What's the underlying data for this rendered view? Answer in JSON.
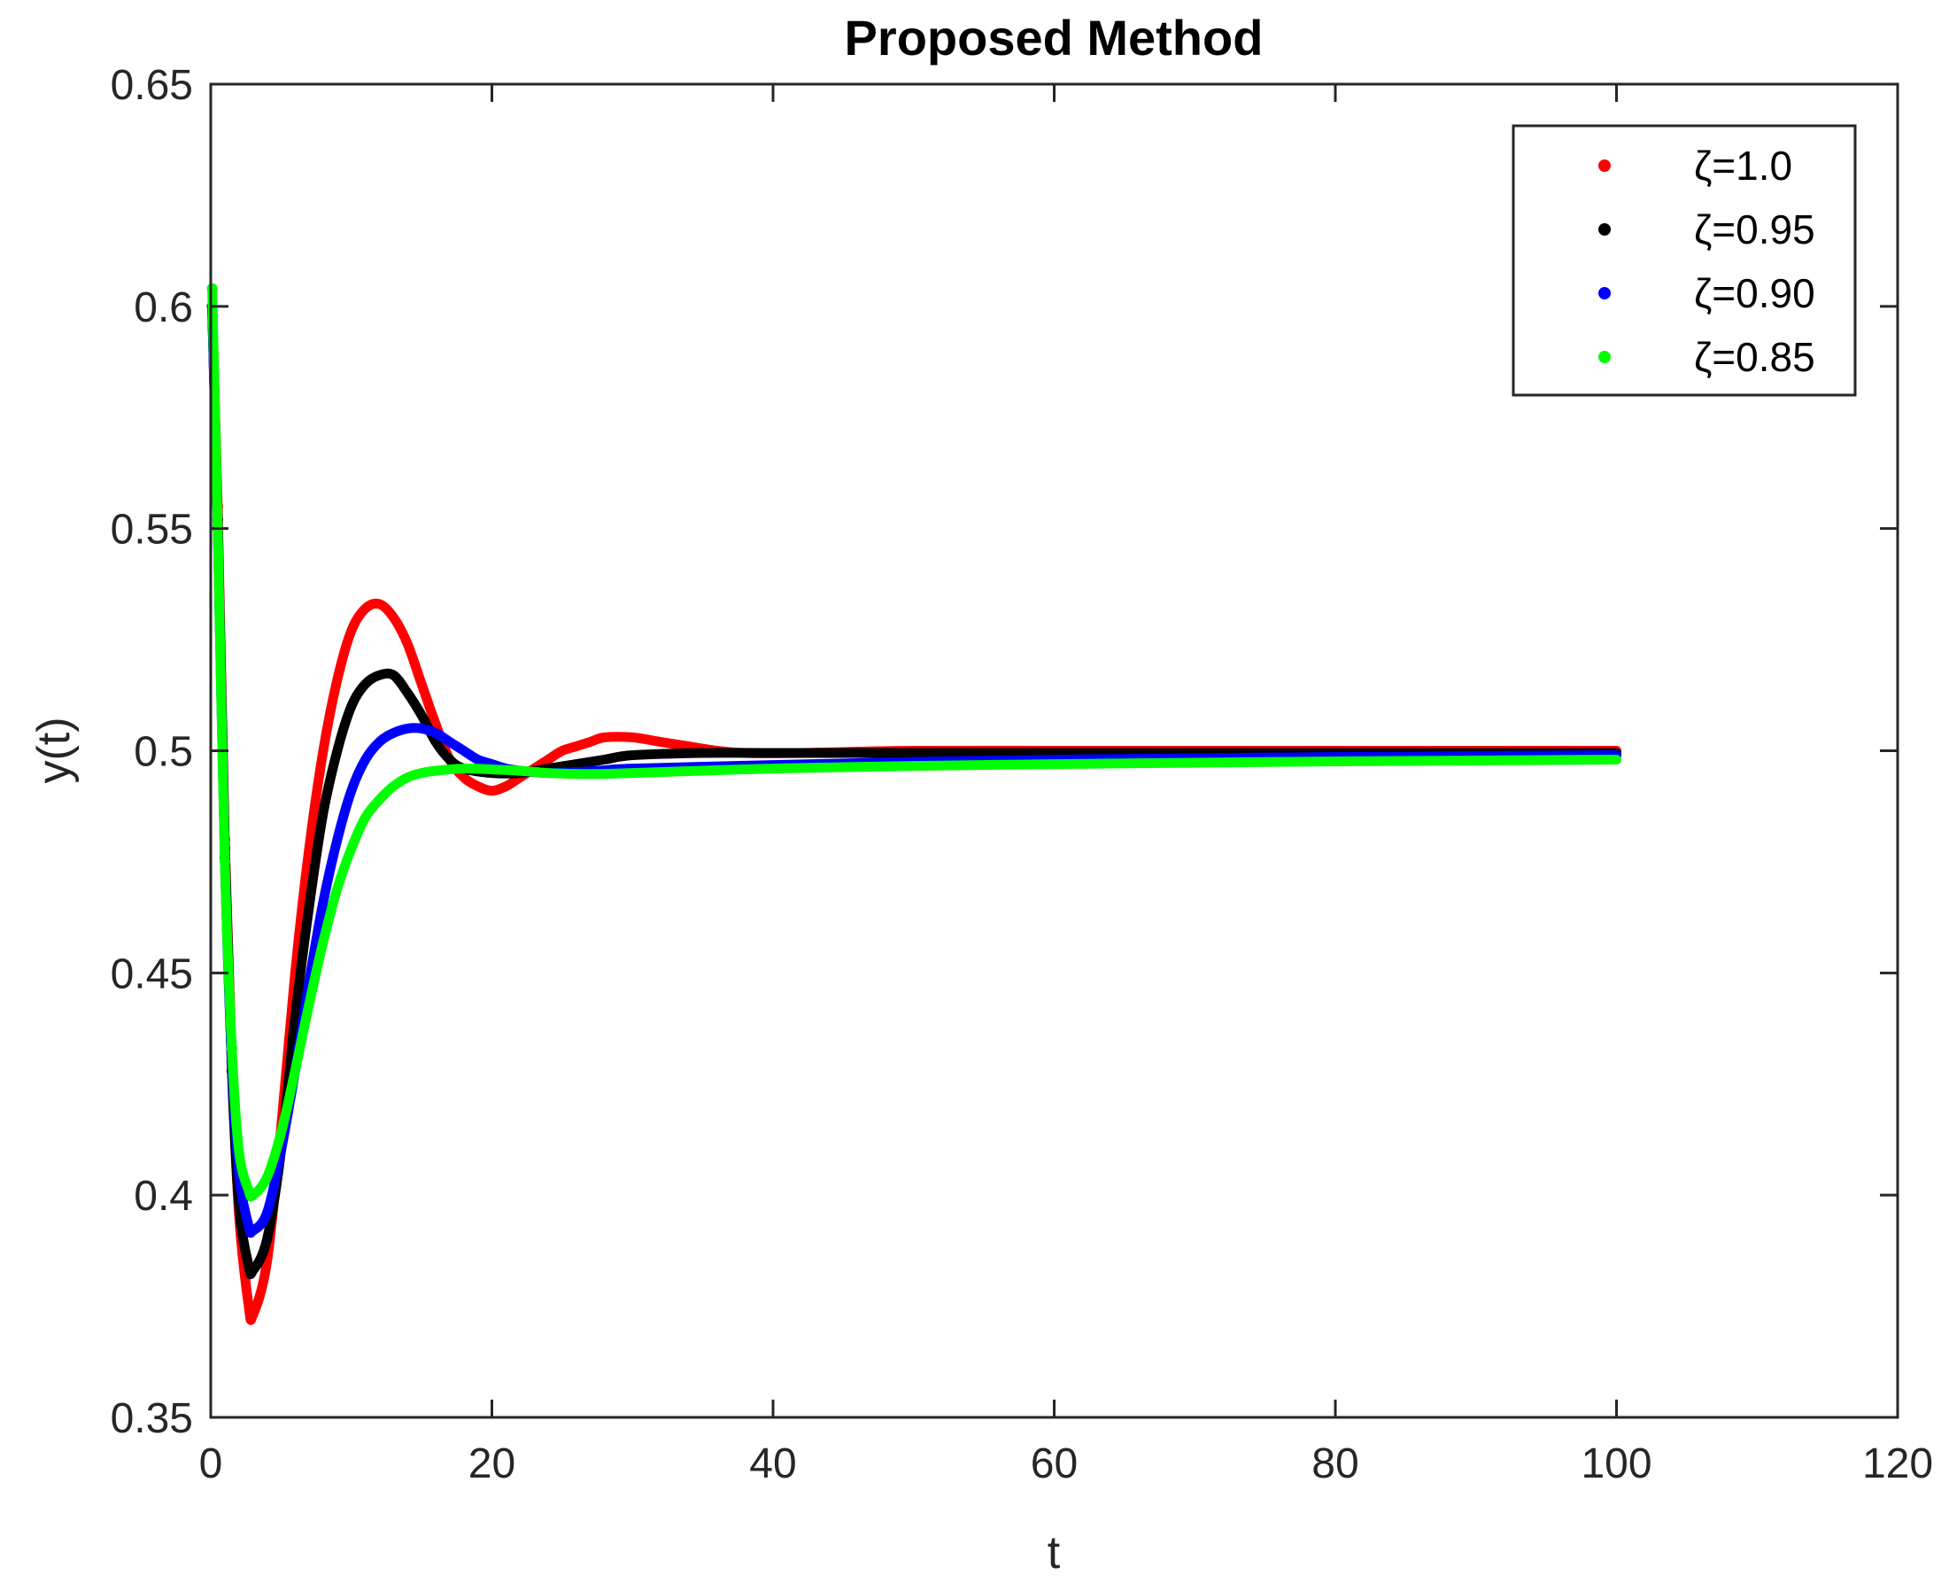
{
  "chart_data": {
    "type": "scatter",
    "title": "Proposed Method",
    "xlabel": "t",
    "ylabel": "y(t)",
    "xlim": [
      0,
      120
    ],
    "ylim": [
      0.35,
      0.65
    ],
    "xticks": [
      "0",
      "20",
      "40",
      "60",
      "80",
      "100",
      "120"
    ],
    "yticks": [
      "0.35",
      "0.4",
      "0.45",
      "0.5",
      "0.55",
      "0.6",
      "0.65"
    ],
    "grid": false,
    "legend_position": "top-right",
    "series": [
      {
        "name": "ζ=1.0",
        "color": "#ff0000",
        "points": [
          [
            0.1,
            0.6
          ],
          [
            0.5,
            0.555
          ],
          [
            1,
            0.48
          ],
          [
            1.5,
            0.43
          ],
          [
            2,
            0.396
          ],
          [
            2.7,
            0.375
          ],
          [
            3,
            0.373
          ],
          [
            4,
            0.385
          ],
          [
            5,
            0.415
          ],
          [
            6,
            0.45
          ],
          [
            7,
            0.478
          ],
          [
            8,
            0.5
          ],
          [
            9,
            0.516
          ],
          [
            10,
            0.527
          ],
          [
            11,
            0.532
          ],
          [
            12,
            0.533
          ],
          [
            13,
            0.53
          ],
          [
            14,
            0.524
          ],
          [
            15,
            0.515
          ],
          [
            16,
            0.506
          ],
          [
            17,
            0.498
          ],
          [
            18,
            0.494
          ],
          [
            19,
            0.492
          ],
          [
            20,
            0.491
          ],
          [
            21,
            0.492
          ],
          [
            22,
            0.494
          ],
          [
            23,
            0.496
          ],
          [
            24,
            0.498
          ],
          [
            25,
            0.5
          ],
          [
            26,
            0.501
          ],
          [
            27,
            0.502
          ],
          [
            28,
            0.503
          ],
          [
            30,
            0.503
          ],
          [
            32,
            0.502
          ],
          [
            34,
            0.501
          ],
          [
            36,
            0.5
          ],
          [
            38,
            0.4995
          ],
          [
            42,
            0.4995
          ],
          [
            50,
            0.5
          ],
          [
            60,
            0.5
          ],
          [
            70,
            0.5
          ],
          [
            80,
            0.5
          ],
          [
            90,
            0.5
          ],
          [
            100,
            0.5
          ]
        ]
      },
      {
        "name": "ζ=0.95",
        "color": "#000000",
        "points": [
          [
            0.1,
            0.6
          ],
          [
            0.5,
            0.552
          ],
          [
            1,
            0.478
          ],
          [
            1.5,
            0.428
          ],
          [
            2,
            0.398
          ],
          [
            2.7,
            0.384
          ],
          [
            3,
            0.383
          ],
          [
            4,
            0.39
          ],
          [
            5,
            0.41
          ],
          [
            6,
            0.44
          ],
          [
            7,
            0.465
          ],
          [
            8,
            0.486
          ],
          [
            9,
            0.5
          ],
          [
            10,
            0.51
          ],
          [
            11,
            0.515
          ],
          [
            12,
            0.517
          ],
          [
            13,
            0.517
          ],
          [
            14,
            0.513
          ],
          [
            15,
            0.508
          ],
          [
            16,
            0.502
          ],
          [
            17,
            0.498
          ],
          [
            18,
            0.496
          ],
          [
            20,
            0.495
          ],
          [
            22,
            0.495
          ],
          [
            24,
            0.496
          ],
          [
            26,
            0.497
          ],
          [
            28,
            0.498
          ],
          [
            30,
            0.499
          ],
          [
            35,
            0.4995
          ],
          [
            40,
            0.4995
          ],
          [
            50,
            0.4995
          ],
          [
            60,
            0.4995
          ],
          [
            70,
            0.4995
          ],
          [
            80,
            0.4995
          ],
          [
            90,
            0.4995
          ],
          [
            100,
            0.4995
          ]
        ]
      },
      {
        "name": "ζ=0.90",
        "color": "#0000ff",
        "points": [
          [
            0.1,
            0.6
          ],
          [
            0.5,
            0.55
          ],
          [
            1,
            0.476
          ],
          [
            1.5,
            0.43
          ],
          [
            2,
            0.405
          ],
          [
            2.7,
            0.393
          ],
          [
            3,
            0.392
          ],
          [
            4,
            0.396
          ],
          [
            5,
            0.41
          ],
          [
            6,
            0.428
          ],
          [
            7,
            0.448
          ],
          [
            8,
            0.466
          ],
          [
            9,
            0.48
          ],
          [
            10,
            0.491
          ],
          [
            11,
            0.498
          ],
          [
            12,
            0.502
          ],
          [
            13,
            0.504
          ],
          [
            14,
            0.505
          ],
          [
            15,
            0.505
          ],
          [
            16,
            0.504
          ],
          [
            17,
            0.502
          ],
          [
            18,
            0.5
          ],
          [
            19,
            0.498
          ],
          [
            20,
            0.497
          ],
          [
            21,
            0.496
          ],
          [
            22,
            0.4955
          ],
          [
            24,
            0.495
          ],
          [
            26,
            0.4952
          ],
          [
            28,
            0.4956
          ],
          [
            30,
            0.496
          ],
          [
            40,
            0.4968
          ],
          [
            50,
            0.4975
          ],
          [
            60,
            0.498
          ],
          [
            70,
            0.4983
          ],
          [
            80,
            0.4986
          ],
          [
            90,
            0.4988
          ],
          [
            100,
            0.499
          ]
        ]
      },
      {
        "name": "ζ=0.85",
        "color": "#00ff00",
        "points": [
          [
            0.1,
            0.604
          ],
          [
            0.5,
            0.55
          ],
          [
            1,
            0.475
          ],
          [
            1.5,
            0.433
          ],
          [
            2,
            0.41
          ],
          [
            2.7,
            0.401
          ],
          [
            3,
            0.4
          ],
          [
            4,
            0.404
          ],
          [
            5,
            0.414
          ],
          [
            6,
            0.428
          ],
          [
            7,
            0.443
          ],
          [
            8,
            0.457
          ],
          [
            9,
            0.469
          ],
          [
            10,
            0.478
          ],
          [
            11,
            0.485
          ],
          [
            12,
            0.489
          ],
          [
            13,
            0.492
          ],
          [
            14,
            0.494
          ],
          [
            15,
            0.495
          ],
          [
            16,
            0.4955
          ],
          [
            18,
            0.496
          ],
          [
            20,
            0.4958
          ],
          [
            22,
            0.4955
          ],
          [
            24,
            0.495
          ],
          [
            26,
            0.4948
          ],
          [
            28,
            0.4948
          ],
          [
            30,
            0.495
          ],
          [
            40,
            0.496
          ],
          [
            50,
            0.4966
          ],
          [
            60,
            0.497
          ],
          [
            70,
            0.4973
          ],
          [
            80,
            0.4976
          ],
          [
            90,
            0.4978
          ],
          [
            100,
            0.498
          ]
        ]
      }
    ]
  }
}
